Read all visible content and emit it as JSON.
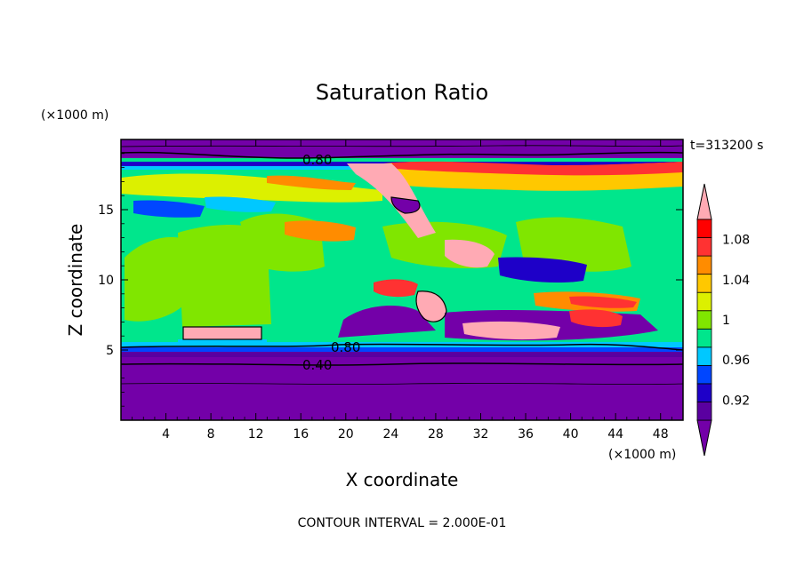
{
  "chart_data": {
    "type": "heatmap",
    "title": "Saturation Ratio",
    "xlabel": "X coordinate",
    "ylabel": "Z coordinate",
    "x_unit": "(×1000 m)",
    "y_unit": "(×1000 m)",
    "time_label": "t=313200 s",
    "footer": "CONTOUR INTERVAL = 2.000E-01",
    "xlim": [
      0,
      50
    ],
    "ylim": [
      0,
      20
    ],
    "xticks": [
      "4",
      "8",
      "12",
      "16",
      "20",
      "24",
      "28",
      "32",
      "36",
      "40",
      "44",
      "48"
    ],
    "yticks": [
      "5",
      "10",
      "15"
    ],
    "colorbar": {
      "levels": [
        0.9,
        0.92,
        0.94,
        0.96,
        0.98,
        1.0,
        1.02,
        1.04,
        1.06,
        1.08,
        1.1
      ],
      "labels": [
        "0.92",
        "0.96",
        "1",
        "1.04",
        "1.08"
      ],
      "colors": [
        "#5a00a0",
        "#1e00c8",
        "#0046ff",
        "#00c8ff",
        "#00e68c",
        "#80e600",
        "#dcf000",
        "#ffc800",
        "#ff8c00",
        "#ff3232",
        "#ff0000"
      ],
      "under_color": "#7300a8",
      "over_color": "#ffaab4"
    },
    "contour_labels": [
      "0.80",
      "0.80",
      "0.40"
    ]
  }
}
